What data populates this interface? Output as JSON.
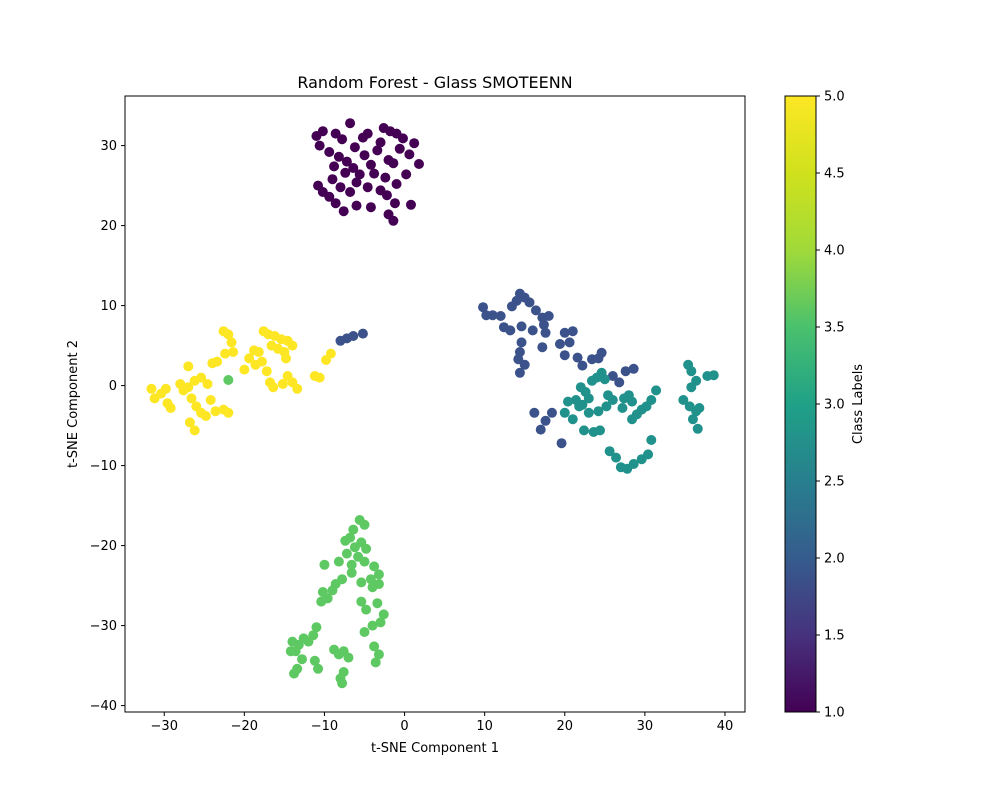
{
  "chart_data": {
    "type": "scatter",
    "title": "Random Forest - Glass SMOTEENN",
    "xlabel": "t-SNE Component 1",
    "ylabel": "t-SNE Component 2",
    "xlim": [
      -34.9,
      42.5
    ],
    "ylim": [
      -40.8,
      36.2
    ],
    "xticks": [
      -30,
      -20,
      -10,
      0,
      10,
      20,
      30,
      40
    ],
    "yticks": [
      -40,
      -30,
      -20,
      -10,
      0,
      10,
      20,
      30
    ],
    "grid": false,
    "colormap": "viridis",
    "colorbar": {
      "label": "Class Labels",
      "range": [
        1.0,
        5.0
      ],
      "ticks": [
        "1.0",
        "1.5",
        "2.0",
        "2.5",
        "3.0",
        "3.5",
        "4.0",
        "4.5",
        "5.0"
      ]
    },
    "series": [
      {
        "class": 1,
        "color": "#440154",
        "points": [
          [
            -11.0,
            31.2
          ],
          [
            -10.2,
            31.8
          ],
          [
            -8.6,
            31.5
          ],
          [
            -7.8,
            30.8
          ],
          [
            -6.8,
            32.8
          ],
          [
            -5.2,
            31.0
          ],
          [
            -4.6,
            31.5
          ],
          [
            -3.0,
            30.4
          ],
          [
            -2.6,
            32.2
          ],
          [
            -1.8,
            31.8
          ],
          [
            -1.0,
            31.5
          ],
          [
            -0.2,
            30.9
          ],
          [
            1.2,
            30.3
          ],
          [
            -10.6,
            30.0
          ],
          [
            -9.4,
            29.2
          ],
          [
            -8.2,
            28.6
          ],
          [
            -6.2,
            29.8
          ],
          [
            -5.0,
            28.8
          ],
          [
            -3.4,
            29.4
          ],
          [
            -2.0,
            28.2
          ],
          [
            -0.6,
            29.6
          ],
          [
            0.6,
            28.9
          ],
          [
            1.8,
            27.7
          ],
          [
            -7.2,
            28.0
          ],
          [
            -4.2,
            27.6
          ],
          [
            -1.4,
            27.8
          ],
          [
            -8.8,
            27.4
          ],
          [
            -5.6,
            26.4
          ],
          [
            -3.8,
            26.5
          ],
          [
            -2.4,
            26.0
          ],
          [
            -1.0,
            25.2
          ],
          [
            0.2,
            26.4
          ],
          [
            -7.4,
            26.6
          ],
          [
            -6.0,
            25.4
          ],
          [
            -4.6,
            24.8
          ],
          [
            -10.8,
            25.0
          ],
          [
            -10.2,
            24.2
          ],
          [
            -9.4,
            23.6
          ],
          [
            -8.0,
            24.8
          ],
          [
            -6.8,
            24.2
          ],
          [
            -3.0,
            24.4
          ],
          [
            -2.2,
            23.8
          ],
          [
            -1.2,
            22.8
          ],
          [
            -8.6,
            22.8
          ],
          [
            -7.6,
            21.8
          ],
          [
            -6.0,
            22.5
          ],
          [
            -4.2,
            22.3
          ],
          [
            -2.0,
            21.4
          ],
          [
            -1.4,
            20.6
          ],
          [
            0.8,
            22.6
          ],
          [
            -9.0,
            25.8
          ],
          [
            -6.4,
            27.2
          ]
        ]
      },
      {
        "class": 2,
        "color": "#3b528b",
        "points": [
          [
            9.8,
            9.8
          ],
          [
            10.2,
            8.8
          ],
          [
            11.0,
            8.8
          ],
          [
            12.0,
            8.7
          ],
          [
            13.4,
            9.9
          ],
          [
            14.0,
            10.6
          ],
          [
            14.4,
            11.5
          ],
          [
            15.0,
            11.0
          ],
          [
            15.6,
            10.4
          ],
          [
            16.4,
            9.4
          ],
          [
            17.2,
            8.5
          ],
          [
            18.0,
            8.7
          ],
          [
            12.4,
            7.3
          ],
          [
            13.2,
            6.9
          ],
          [
            14.6,
            7.4
          ],
          [
            16.0,
            6.9
          ],
          [
            17.4,
            7.6
          ],
          [
            17.6,
            6.6
          ],
          [
            14.6,
            5.4
          ],
          [
            14.4,
            4.2
          ],
          [
            14.2,
            3.3
          ],
          [
            15.0,
            2.6
          ],
          [
            14.4,
            1.6
          ],
          [
            17.2,
            4.8
          ],
          [
            19.4,
            5.2
          ],
          [
            20.0,
            6.6
          ],
          [
            20.6,
            5.4
          ],
          [
            21.0,
            6.8
          ],
          [
            20.0,
            3.8
          ],
          [
            21.6,
            3.5
          ],
          [
            22.2,
            2.5
          ],
          [
            23.4,
            3.3
          ],
          [
            24.2,
            3.4
          ],
          [
            24.6,
            4.1
          ],
          [
            26.0,
            1.2
          ],
          [
            26.8,
            0.4
          ],
          [
            27.6,
            1.8
          ],
          [
            28.6,
            2.1
          ],
          [
            17.6,
            -4.4
          ],
          [
            17.0,
            -5.5
          ],
          [
            16.2,
            -3.4
          ],
          [
            18.4,
            -3.4
          ],
          [
            19.6,
            -7.2
          ],
          [
            -8.0,
            5.6
          ],
          [
            -7.2,
            5.9
          ],
          [
            -6.4,
            6.2
          ],
          [
            -5.2,
            6.5
          ]
        ]
      },
      {
        "class": 3,
        "color": "#21918c",
        "points": [
          [
            21.4,
            -1.8
          ],
          [
            22.2,
            -2.4
          ],
          [
            23.0,
            -1.6
          ],
          [
            22.6,
            -0.8
          ],
          [
            22.0,
            -0.2
          ],
          [
            23.4,
            0.6
          ],
          [
            24.0,
            1.0
          ],
          [
            24.6,
            1.6
          ],
          [
            25.0,
            0.8
          ],
          [
            25.4,
            -1.2
          ],
          [
            26.0,
            -1.8
          ],
          [
            25.2,
            -2.6
          ],
          [
            24.2,
            -3.2
          ],
          [
            23.0,
            -3.4
          ],
          [
            21.8,
            -2.6
          ],
          [
            20.4,
            -2.0
          ],
          [
            20.0,
            -3.4
          ],
          [
            21.0,
            -4.2
          ],
          [
            22.4,
            -5.6
          ],
          [
            23.6,
            -5.8
          ],
          [
            24.4,
            -5.6
          ],
          [
            25.6,
            -8.2
          ],
          [
            26.4,
            -9.0
          ],
          [
            27.0,
            -10.2
          ],
          [
            27.8,
            -10.4
          ],
          [
            28.6,
            -9.8
          ],
          [
            29.6,
            -9.2
          ],
          [
            30.4,
            -8.6
          ],
          [
            30.8,
            -6.8
          ],
          [
            31.4,
            -0.6
          ],
          [
            30.8,
            -1.8
          ],
          [
            30.2,
            -2.6
          ],
          [
            29.6,
            -3.0
          ],
          [
            29.0,
            -3.6
          ],
          [
            28.4,
            -4.2
          ],
          [
            27.4,
            -1.6
          ],
          [
            28.0,
            -1.2
          ],
          [
            28.4,
            -2.0
          ],
          [
            27.2,
            -2.8
          ],
          [
            35.4,
            2.6
          ],
          [
            35.8,
            1.8
          ],
          [
            36.4,
            0.6
          ],
          [
            35.8,
            -0.2
          ],
          [
            34.8,
            -1.8
          ],
          [
            35.6,
            -2.6
          ],
          [
            36.4,
            -3.2
          ],
          [
            36.8,
            -2.8
          ],
          [
            36.0,
            -4.2
          ],
          [
            36.6,
            -5.4
          ],
          [
            37.8,
            1.2
          ],
          [
            38.6,
            1.3
          ]
        ]
      },
      {
        "class": 4,
        "color": "#5ec962",
        "points": [
          [
            -5.6,
            -16.8
          ],
          [
            -5.0,
            -17.4
          ],
          [
            -6.4,
            -18.0
          ],
          [
            -6.8,
            -19.0
          ],
          [
            -7.4,
            -19.4
          ],
          [
            -6.2,
            -20.2
          ],
          [
            -5.4,
            -19.6
          ],
          [
            -4.8,
            -20.4
          ],
          [
            -5.8,
            -21.4
          ],
          [
            -7.2,
            -21.0
          ],
          [
            -8.2,
            -22.0
          ],
          [
            -6.6,
            -22.4
          ],
          [
            -5.0,
            -22.0
          ],
          [
            -3.8,
            -22.6
          ],
          [
            -3.2,
            -23.6
          ],
          [
            -4.2,
            -24.2
          ],
          [
            -4.0,
            -25.2
          ],
          [
            -3.2,
            -24.8
          ],
          [
            -5.4,
            -24.6
          ],
          [
            -6.6,
            -23.4
          ],
          [
            -7.8,
            -24.2
          ],
          [
            -8.6,
            -24.8
          ],
          [
            -9.0,
            -25.6
          ],
          [
            -9.6,
            -26.6
          ],
          [
            -10.2,
            -25.8
          ],
          [
            -10.4,
            -27.0
          ],
          [
            -10.0,
            -22.4
          ],
          [
            -5.4,
            -27.0
          ],
          [
            -4.8,
            -28.0
          ],
          [
            -3.4,
            -27.2
          ],
          [
            -2.6,
            -28.6
          ],
          [
            -3.0,
            -29.6
          ],
          [
            -4.0,
            -30.0
          ],
          [
            -5.0,
            -30.8
          ],
          [
            -3.8,
            -32.6
          ],
          [
            -3.2,
            -33.6
          ],
          [
            -3.6,
            -34.6
          ],
          [
            -11.0,
            -30.2
          ],
          [
            -11.4,
            -31.2
          ],
          [
            -12.0,
            -32.0
          ],
          [
            -12.6,
            -31.6
          ],
          [
            -13.2,
            -32.4
          ],
          [
            -13.6,
            -33.2
          ],
          [
            -12.8,
            -34.2
          ],
          [
            -13.4,
            -35.4
          ],
          [
            -13.8,
            -36.0
          ],
          [
            -11.2,
            -34.4
          ],
          [
            -10.8,
            -35.4
          ],
          [
            -8.8,
            -33.0
          ],
          [
            -8.2,
            -33.6
          ],
          [
            -7.6,
            -33.2
          ],
          [
            -7.0,
            -34.0
          ],
          [
            -7.6,
            -35.8
          ],
          [
            -8.0,
            -36.6
          ],
          [
            -7.8,
            -37.2
          ],
          [
            -14.0,
            -32.0
          ],
          [
            -14.2,
            -33.2
          ]
        ]
      },
      {
        "class": 5,
        "color": "#fde725",
        "points": [
          [
            -31.6,
            -0.4
          ],
          [
            -31.2,
            -1.6
          ],
          [
            -30.4,
            -1.0
          ],
          [
            -29.8,
            -0.4
          ],
          [
            -29.6,
            -2.2
          ],
          [
            -29.2,
            -2.8
          ],
          [
            -28.0,
            0.2
          ],
          [
            -27.6,
            -0.6
          ],
          [
            -27.0,
            -0.2
          ],
          [
            -26.6,
            -1.6
          ],
          [
            -26.0,
            -2.6
          ],
          [
            -25.4,
            -3.4
          ],
          [
            -24.8,
            -3.8
          ],
          [
            -23.6,
            -3.2
          ],
          [
            -22.6,
            -3.0
          ],
          [
            -22.0,
            -3.4
          ],
          [
            -24.2,
            -1.8
          ],
          [
            -24.6,
            0.2
          ],
          [
            -25.4,
            1.0
          ],
          [
            -26.2,
            0.6
          ],
          [
            -24.0,
            2.8
          ],
          [
            -23.4,
            3.0
          ],
          [
            -22.4,
            4.0
          ],
          [
            -21.4,
            4.2
          ],
          [
            -22.6,
            6.8
          ],
          [
            -22.0,
            6.4
          ],
          [
            -21.6,
            5.4
          ],
          [
            -26.8,
            -4.6
          ],
          [
            -26.2,
            -5.6
          ],
          [
            -27.0,
            2.4
          ],
          [
            -20.0,
            2.0
          ],
          [
            -19.4,
            3.4
          ],
          [
            -18.8,
            4.4
          ],
          [
            -18.2,
            4.2
          ],
          [
            -17.8,
            3.0
          ],
          [
            -17.2,
            1.8
          ],
          [
            -16.8,
            0.4
          ],
          [
            -16.4,
            -0.2
          ],
          [
            -18.6,
            2.6
          ],
          [
            -17.6,
            6.8
          ],
          [
            -17.0,
            6.4
          ],
          [
            -16.2,
            6.2
          ],
          [
            -15.4,
            5.8
          ],
          [
            -14.6,
            5.6
          ],
          [
            -14.0,
            5.0
          ],
          [
            -16.6,
            5.0
          ],
          [
            -15.8,
            4.6
          ],
          [
            -15.0,
            4.2
          ],
          [
            -14.8,
            3.4
          ],
          [
            -14.6,
            1.2
          ],
          [
            -14.0,
            0.4
          ],
          [
            -13.4,
            -0.4
          ],
          [
            -15.2,
            0.2
          ],
          [
            -11.2,
            1.2
          ],
          [
            -10.6,
            1.0
          ],
          [
            -9.8,
            3.2
          ],
          [
            -9.2,
            4.0
          ]
        ]
      },
      {
        "class": 4,
        "color": "#5ec962",
        "points": [
          [
            -22.0,
            0.7
          ]
        ]
      }
    ]
  }
}
